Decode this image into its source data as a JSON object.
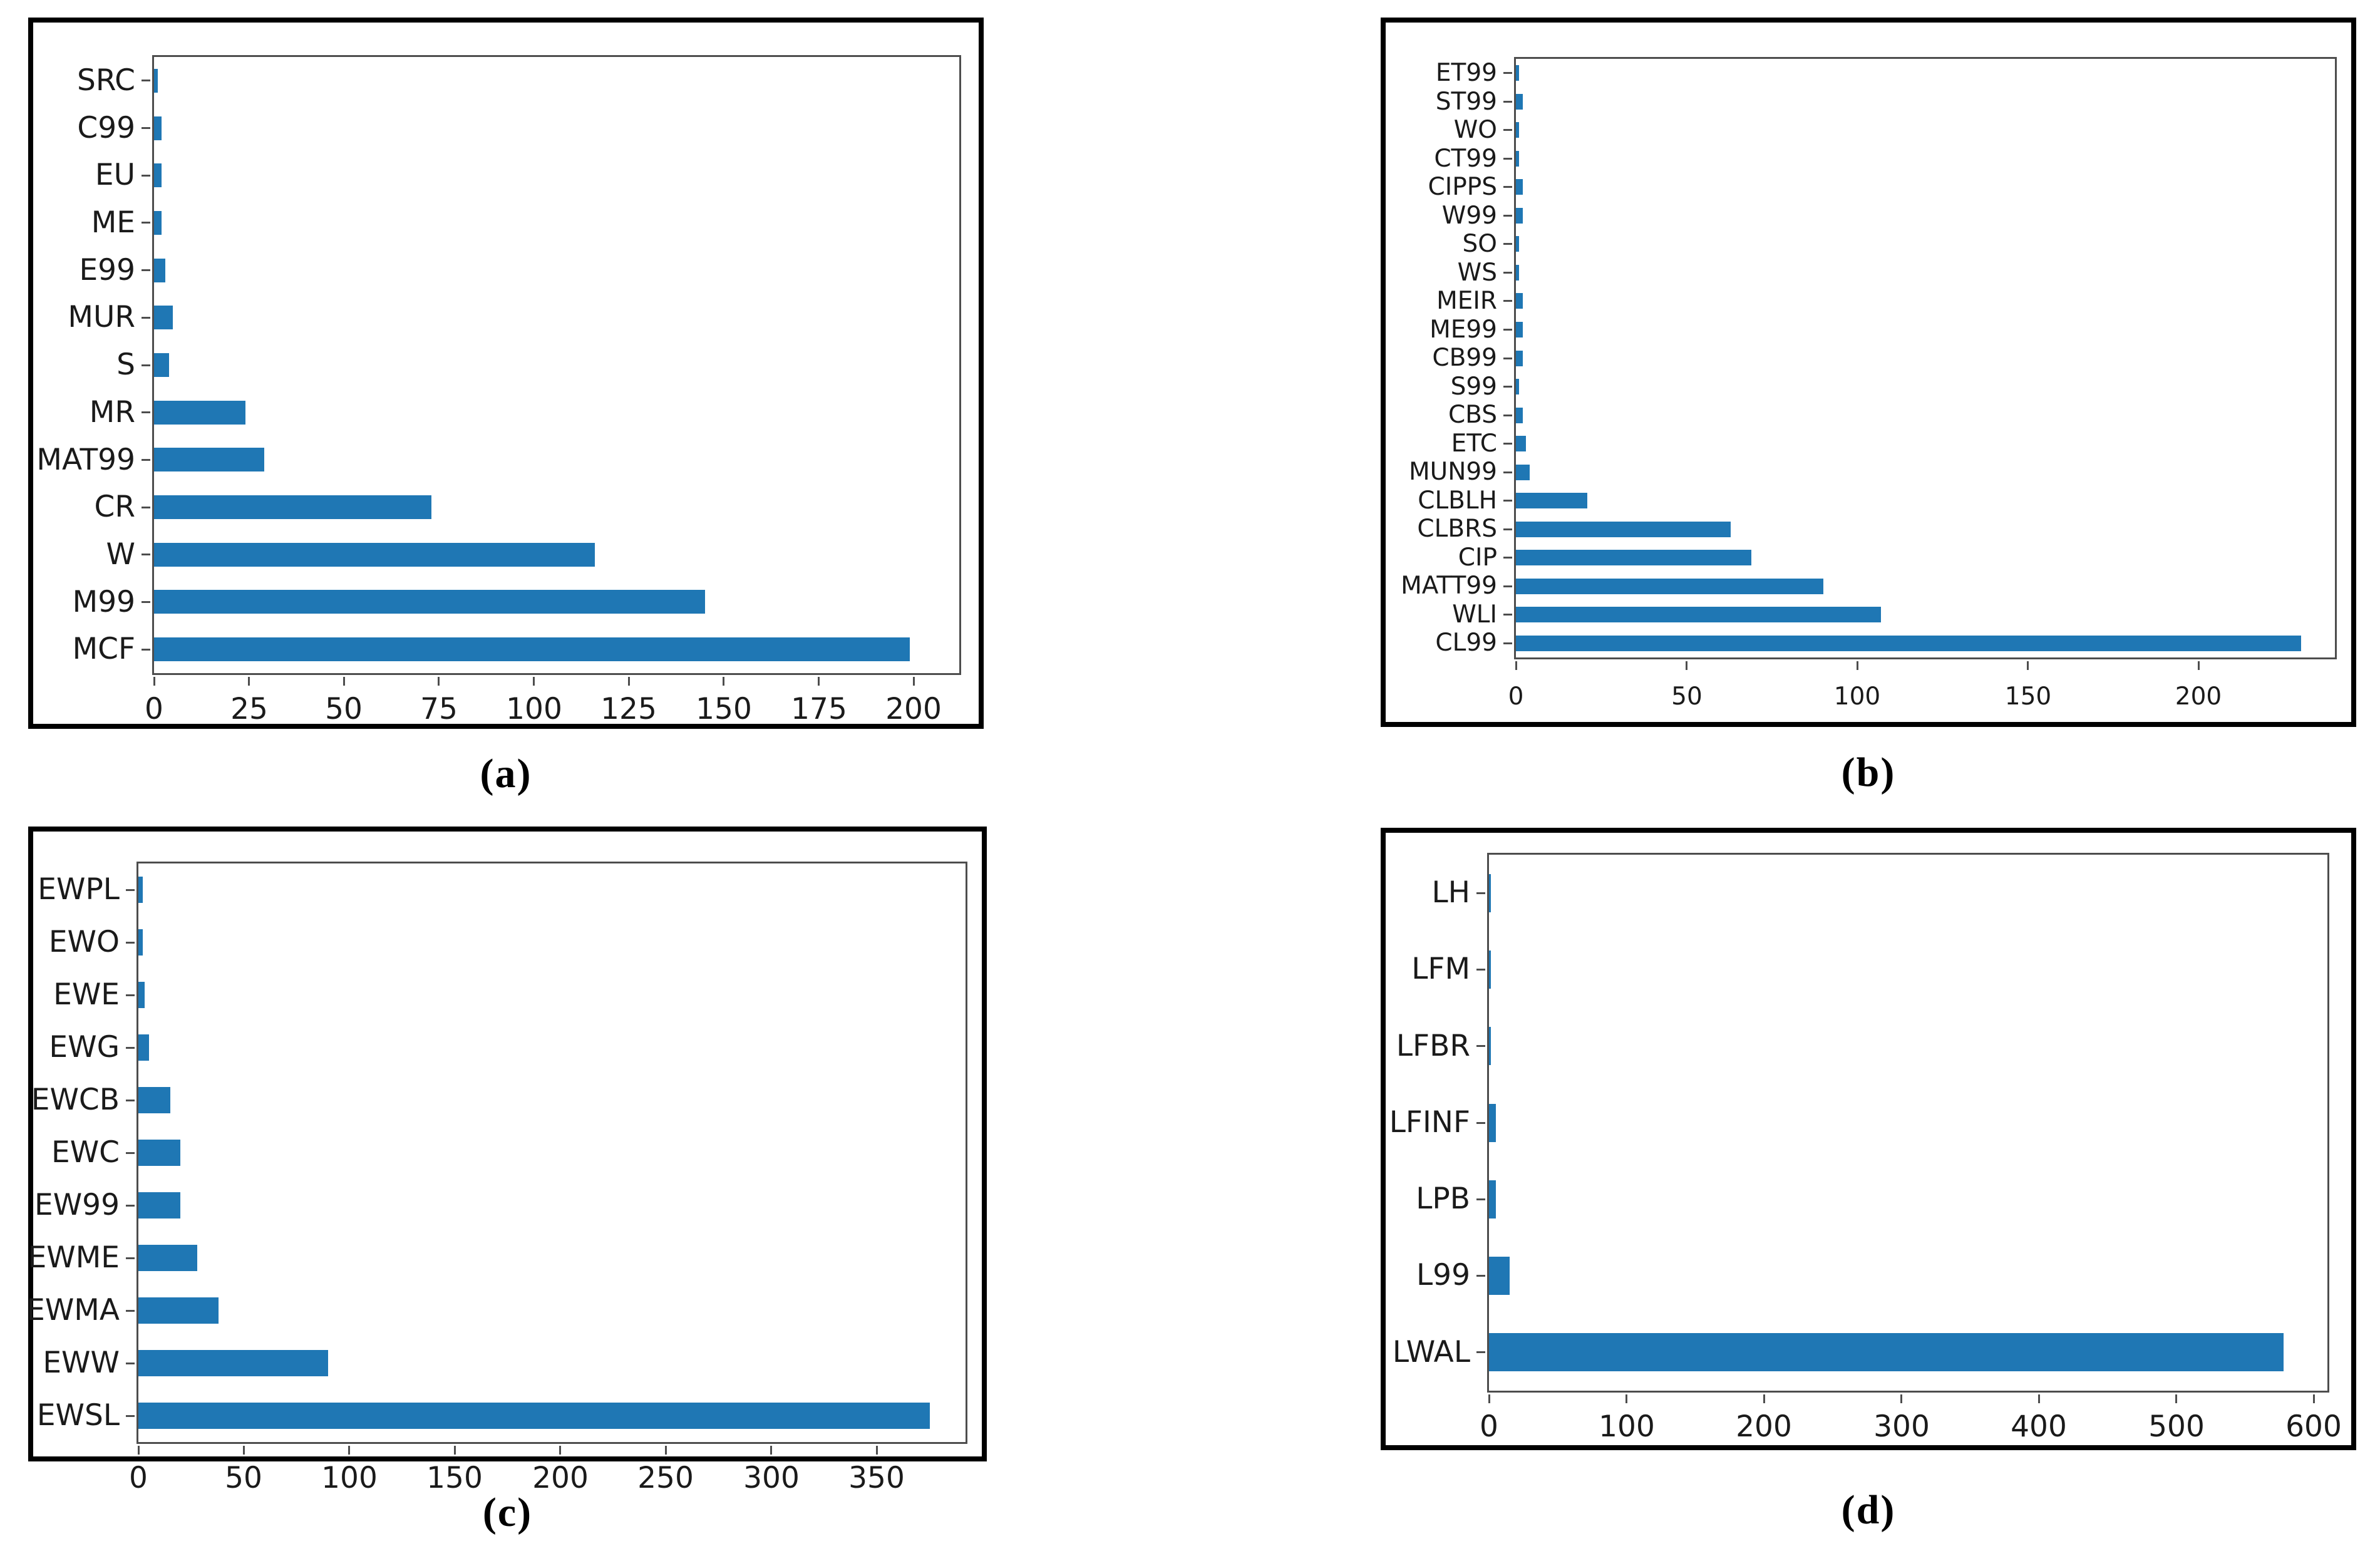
{
  "figure": {
    "background": "#ffffff",
    "captions": {
      "a": "(a)",
      "b": "(b)",
      "c": "(c)",
      "d": "(d)"
    }
  },
  "colors": {
    "bar": "#1f77b4",
    "spine": "#4d4d4d",
    "panel_border": "#000000",
    "tick_label": "#1a1a1a"
  },
  "chart_data": [
    {
      "id": "a",
      "type": "bar",
      "orientation": "horizontal",
      "panel_label": "(a)",
      "title": "",
      "xlabel": "",
      "ylabel": "",
      "grid": false,
      "legend": null,
      "categories_top_to_bottom": [
        "SRC",
        "C99",
        "EU",
        "ME",
        "E99",
        "MUR",
        "S",
        "MR",
        "MAT99",
        "CR",
        "W",
        "M99",
        "MCF"
      ],
      "values": [
        1,
        2,
        2,
        2,
        3,
        5,
        4,
        24,
        29,
        73,
        116,
        145,
        199
      ],
      "xticks": [
        0,
        25,
        50,
        75,
        100,
        125,
        150,
        175,
        200
      ],
      "xlim": [
        0,
        212
      ]
    },
    {
      "id": "b",
      "type": "bar",
      "orientation": "horizontal",
      "panel_label": "(b)",
      "title": "",
      "xlabel": "",
      "ylabel": "",
      "grid": false,
      "legend": null,
      "categories_top_to_bottom": [
        "ET99",
        "ST99",
        "WO",
        "CT99",
        "CIPPS",
        "W99",
        "SO",
        "WS",
        "MEIR",
        "ME99",
        "CB99",
        "S99",
        "CBS",
        "ETC",
        "MUN99",
        "CLBLH",
        "CLBRS",
        "CIP",
        "MATT99",
        "WLI",
        "CL99"
      ],
      "values": [
        1,
        2,
        1,
        1,
        2,
        2,
        1,
        1,
        2,
        2,
        2,
        1,
        2,
        3,
        4,
        21,
        63,
        69,
        90,
        107,
        230
      ],
      "xticks": [
        0,
        50,
        100,
        150,
        200
      ],
      "xlim": [
        0,
        240
      ]
    },
    {
      "id": "c",
      "type": "bar",
      "orientation": "horizontal",
      "panel_label": "(c)",
      "title": "",
      "xlabel": "",
      "ylabel": "",
      "grid": false,
      "legend": null,
      "categories_top_to_bottom": [
        "EWPL",
        "EWO",
        "EWE",
        "EWG",
        "EWCB",
        "EWC",
        "EW99",
        "EWME",
        "EWMA",
        "EWW",
        "EWSL"
      ],
      "values": [
        2,
        2,
        3,
        5,
        15,
        20,
        20,
        28,
        38,
        90,
        375
      ],
      "xticks": [
        0,
        50,
        100,
        150,
        200,
        250,
        300,
        350
      ],
      "xlim": [
        0,
        392
      ]
    },
    {
      "id": "d",
      "type": "bar",
      "orientation": "horizontal",
      "panel_label": "(d)",
      "title": "",
      "xlabel": "",
      "ylabel": "",
      "grid": false,
      "legend": null,
      "categories_top_to_bottom": [
        "LH",
        "LFM",
        "LFBR",
        "LFINF",
        "LPB",
        "L99",
        "LWAL"
      ],
      "values": [
        1,
        1,
        1,
        5,
        5,
        15,
        578
      ],
      "xticks": [
        0,
        100,
        200,
        300,
        400,
        500,
        600
      ],
      "xlim": [
        0,
        610
      ]
    }
  ]
}
